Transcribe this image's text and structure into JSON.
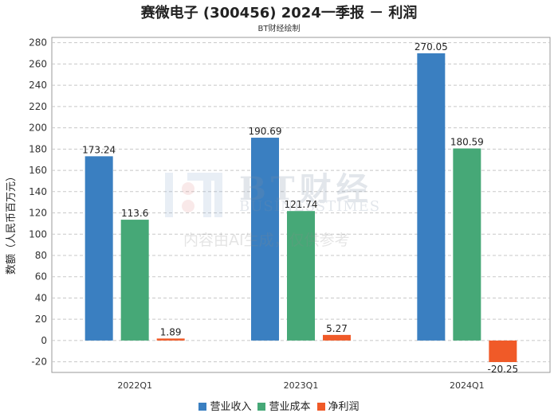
{
  "chart_data": {
    "type": "bar",
    "title": "赛微电子 (300456) 2024一季报 － 利润",
    "subtitle": "BT财经绘制",
    "xlabel": "",
    "ylabel": "数额（人民币百万元）",
    "categories": [
      "2022Q1",
      "2023Q1",
      "2024Q1"
    ],
    "series": [
      {
        "name": "营业收入",
        "color": "#3a7fc1",
        "values": [
          173.24,
          190.69,
          270.05
        ],
        "labels": [
          "173.24",
          "190.69",
          "270.05"
        ]
      },
      {
        "name": "营业成本",
        "color": "#46a877",
        "values": [
          113.6,
          121.74,
          180.59
        ],
        "labels": [
          "113.6",
          "121.74",
          "180.59"
        ]
      },
      {
        "name": "净利润",
        "color": "#f05a28",
        "values": [
          1.89,
          5.27,
          -20.25
        ],
        "labels": [
          "1.89",
          "5.27",
          "-20.25"
        ]
      }
    ],
    "ylim": [
      -30,
      285
    ],
    "yticks": [
      -20,
      0,
      20,
      40,
      60,
      80,
      100,
      120,
      140,
      160,
      180,
      200,
      220,
      240,
      260,
      280
    ],
    "grid": true,
    "legend_position": "bottom"
  },
  "watermark": {
    "brand": "BT财经",
    "brand_en": "BUSINESSTIMES",
    "notice": "内容由AI生成，仅供参考"
  }
}
